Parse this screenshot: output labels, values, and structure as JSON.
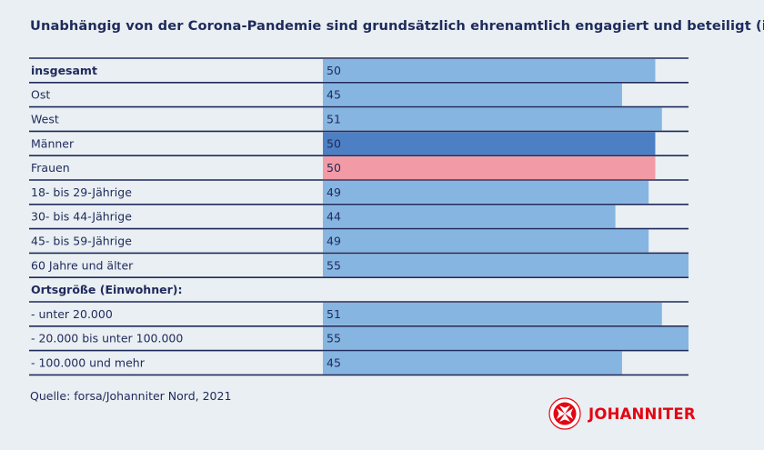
{
  "title": "Unabhängig von der Corona-Pandemie sind grundsätzlich ehrenamtlich engagiert und beteiligt (in %)",
  "source": "Quelle: forsa/Johanniter Nord, 2021",
  "logo": {
    "text": "JOHANNITER"
  },
  "colors": {
    "default": "#86b5e1",
    "men": "#4d7fc4",
    "women": "#f29aa5",
    "text": "#1f2a5c",
    "logo": "#e30613"
  },
  "chart_data": {
    "type": "bar",
    "orientation": "horizontal",
    "xlim": [
      0,
      55
    ],
    "rows": [
      {
        "label": "insgesamt",
        "value": 50,
        "bold": true,
        "color": "default"
      },
      {
        "label": "Ost",
        "value": 45,
        "color": "default"
      },
      {
        "label": "West",
        "value": 51,
        "color": "default"
      },
      {
        "label": "Männer",
        "value": 50,
        "color": "men"
      },
      {
        "label": "Frauen",
        "value": 50,
        "color": "women"
      },
      {
        "label": "18- bis 29-Jährige",
        "value": 49,
        "color": "default"
      },
      {
        "label": "30- bis 44-Jährige",
        "value": 44,
        "color": "default"
      },
      {
        "label": "45- bis 59-Jährige",
        "value": 49,
        "color": "default"
      },
      {
        "label": "60 Jahre und älter",
        "value": 55,
        "color": "default"
      },
      {
        "label": "Ortsgröße (Einwohner):",
        "value": null,
        "bold": true,
        "header": true
      },
      {
        "label": "- unter 20.000",
        "value": 51,
        "color": "default"
      },
      {
        "label": "- 20.000 bis unter 100.000",
        "value": 55,
        "color": "default"
      },
      {
        "label": "- 100.000 und mehr",
        "value": 45,
        "color": "default"
      }
    ]
  }
}
